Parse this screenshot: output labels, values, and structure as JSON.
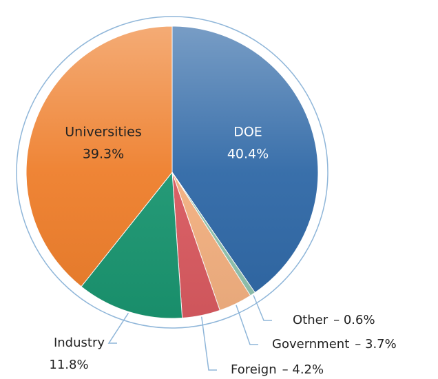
{
  "chart_data": {
    "type": "pie",
    "categories": [
      "DOE",
      "Other",
      "Government",
      "Foreign",
      "Industry",
      "Universities"
    ],
    "values": [
      40.4,
      0.6,
      3.7,
      4.2,
      11.8,
      39.3
    ],
    "value_labels": [
      "40.4%",
      "– 0.6%",
      "– 3.7%",
      "– 4.2%",
      "11.8%",
      "39.3%"
    ],
    "colors": [
      "#2f68a6",
      "#8fc2ae",
      "#f3b080",
      "#d95a60",
      "#1a9570",
      "#ee7e2b"
    ]
  }
}
